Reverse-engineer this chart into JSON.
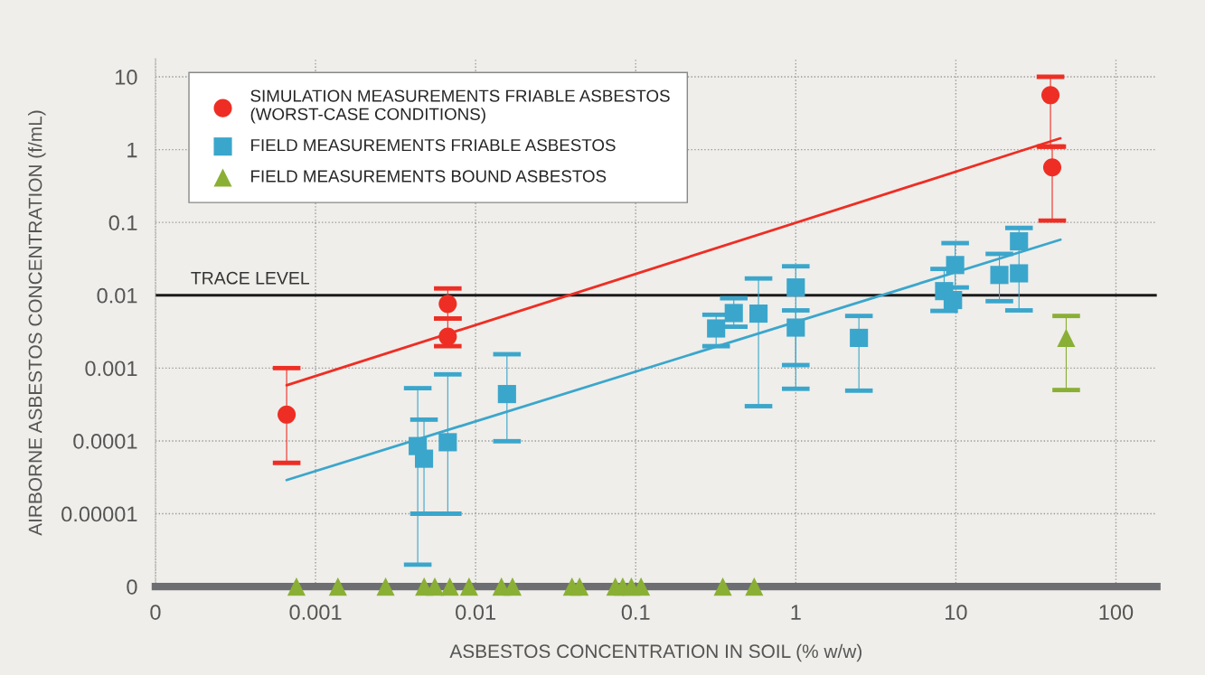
{
  "chart_data": {
    "type": "scatter",
    "xlabel": "ASBESTOS CONCENTRATION IN SOIL (% w/w)",
    "ylabel": "AIRBORNE ASBESTOS CONCENTRATION (f/mL)",
    "log": "xy",
    "xlim": [
      0.0001,
      180
    ],
    "ylim": [
      1e-06,
      17.7
    ],
    "xticks": [
      {
        "value": 0.0001,
        "label": "0"
      },
      0.001,
      0.01,
      0.1,
      1,
      10,
      100
    ],
    "yticks": [
      {
        "value": 1e-06,
        "label": "0"
      },
      {
        "value": 1e-05,
        "label": "0.00001"
      },
      0.0001,
      0.001,
      0.01,
      0.1,
      1,
      10
    ],
    "grid": true,
    "legend": "top left",
    "ref_lines": [
      {
        "axis": "y",
        "value": 0.01,
        "label": "TRACE LEVEL",
        "color": "#1a1a1a"
      }
    ],
    "series": [
      {
        "name": "SIMULATION MEASUREMENTS FRIABLE ASBESTOS\n(WORST-CASE CONDITIONS)",
        "marker": "circle",
        "color": "#ee2e24",
        "x": [
          0.00066,
          0.0067,
          0.0067,
          39,
          40
        ],
        "values": [
          0.00023,
          0.0076,
          0.0027,
          5.6,
          0.57
        ],
        "errors": [
          [
            5e-05,
            0.001
          ],
          [
            0.0048,
            0.0124
          ],
          [
            0.002,
            0.0048
          ],
          [
            1.1,
            10
          ],
          [
            0.106,
            1.1
          ]
        ]
      },
      {
        "name": "FIELD MEASUREMENTS FRIABLE ASBESTOS",
        "marker": "square",
        "color": "#3ba6cc",
        "x": [
          0.00435,
          0.00476,
          0.0067,
          0.0157,
          0.318,
          0.41,
          0.585,
          1.0,
          1.0,
          2.48,
          9.9,
          8.45,
          9.6,
          18.7,
          24.8,
          24.8
        ],
        "values": [
          8.5e-05,
          5.7e-05,
          9.6e-05,
          0.00044,
          0.0035,
          0.0057,
          0.0056,
          0.0128,
          0.0036,
          0.0026,
          0.026,
          0.0114,
          0.0086,
          0.019,
          0.055,
          0.02
        ],
        "errors": [
          [
            2e-06,
            0.00053
          ],
          [
            1e-05,
            0.000196
          ],
          [
            1e-05,
            0.00082
          ],
          [
            9.9e-05,
            0.00155
          ],
          [
            0.002,
            0.0054
          ],
          [
            0.0037,
            0.0091
          ],
          [
            0.0003,
            0.017
          ],
          [
            0.0011,
            0.025
          ],
          [
            0.00052,
            0.0062
          ],
          [
            0.00049,
            0.0052
          ],
          [
            0.0128,
            0.052
          ],
          [
            0.0061,
            0.023
          ],
          null,
          [
            0.0083,
            0.037
          ],
          [
            0.0062,
            0.084
          ],
          null
        ]
      },
      {
        "name": "FIELD MEASUREMENTS BOUND ASBESTOS",
        "marker": "triangle",
        "color": "#8aaf35",
        "x": [
          48.9,
          0.00076,
          0.00138,
          0.00274,
          0.00477,
          0.00556,
          0.0069,
          0.0091,
          0.0145,
          0.017,
          0.04,
          0.0446,
          0.0746,
          0.083,
          0.094,
          0.108,
          0.35,
          0.55
        ],
        "values": [
          0.0026,
          1e-06,
          1e-06,
          1e-06,
          1e-06,
          1e-06,
          1e-06,
          1e-06,
          1e-06,
          1e-06,
          1e-06,
          1e-06,
          1e-06,
          1e-06,
          1e-06,
          1e-06,
          1e-06,
          1e-06
        ],
        "errors": [
          [
            0.0005,
            0.0052
          ],
          null,
          null,
          null,
          null,
          null,
          null,
          null,
          null,
          null,
          null,
          null,
          null,
          null,
          null,
          null,
          null,
          null
        ]
      },
      {
        "type": "line",
        "color": "#ee2e24",
        "x": [
          0.00066,
          45
        ],
        "values": [
          0.00058,
          1.43
        ]
      },
      {
        "type": "line",
        "color": "#3ba6cc",
        "x": [
          0.00066,
          45
        ],
        "values": [
          2.9e-05,
          0.058
        ]
      }
    ]
  }
}
